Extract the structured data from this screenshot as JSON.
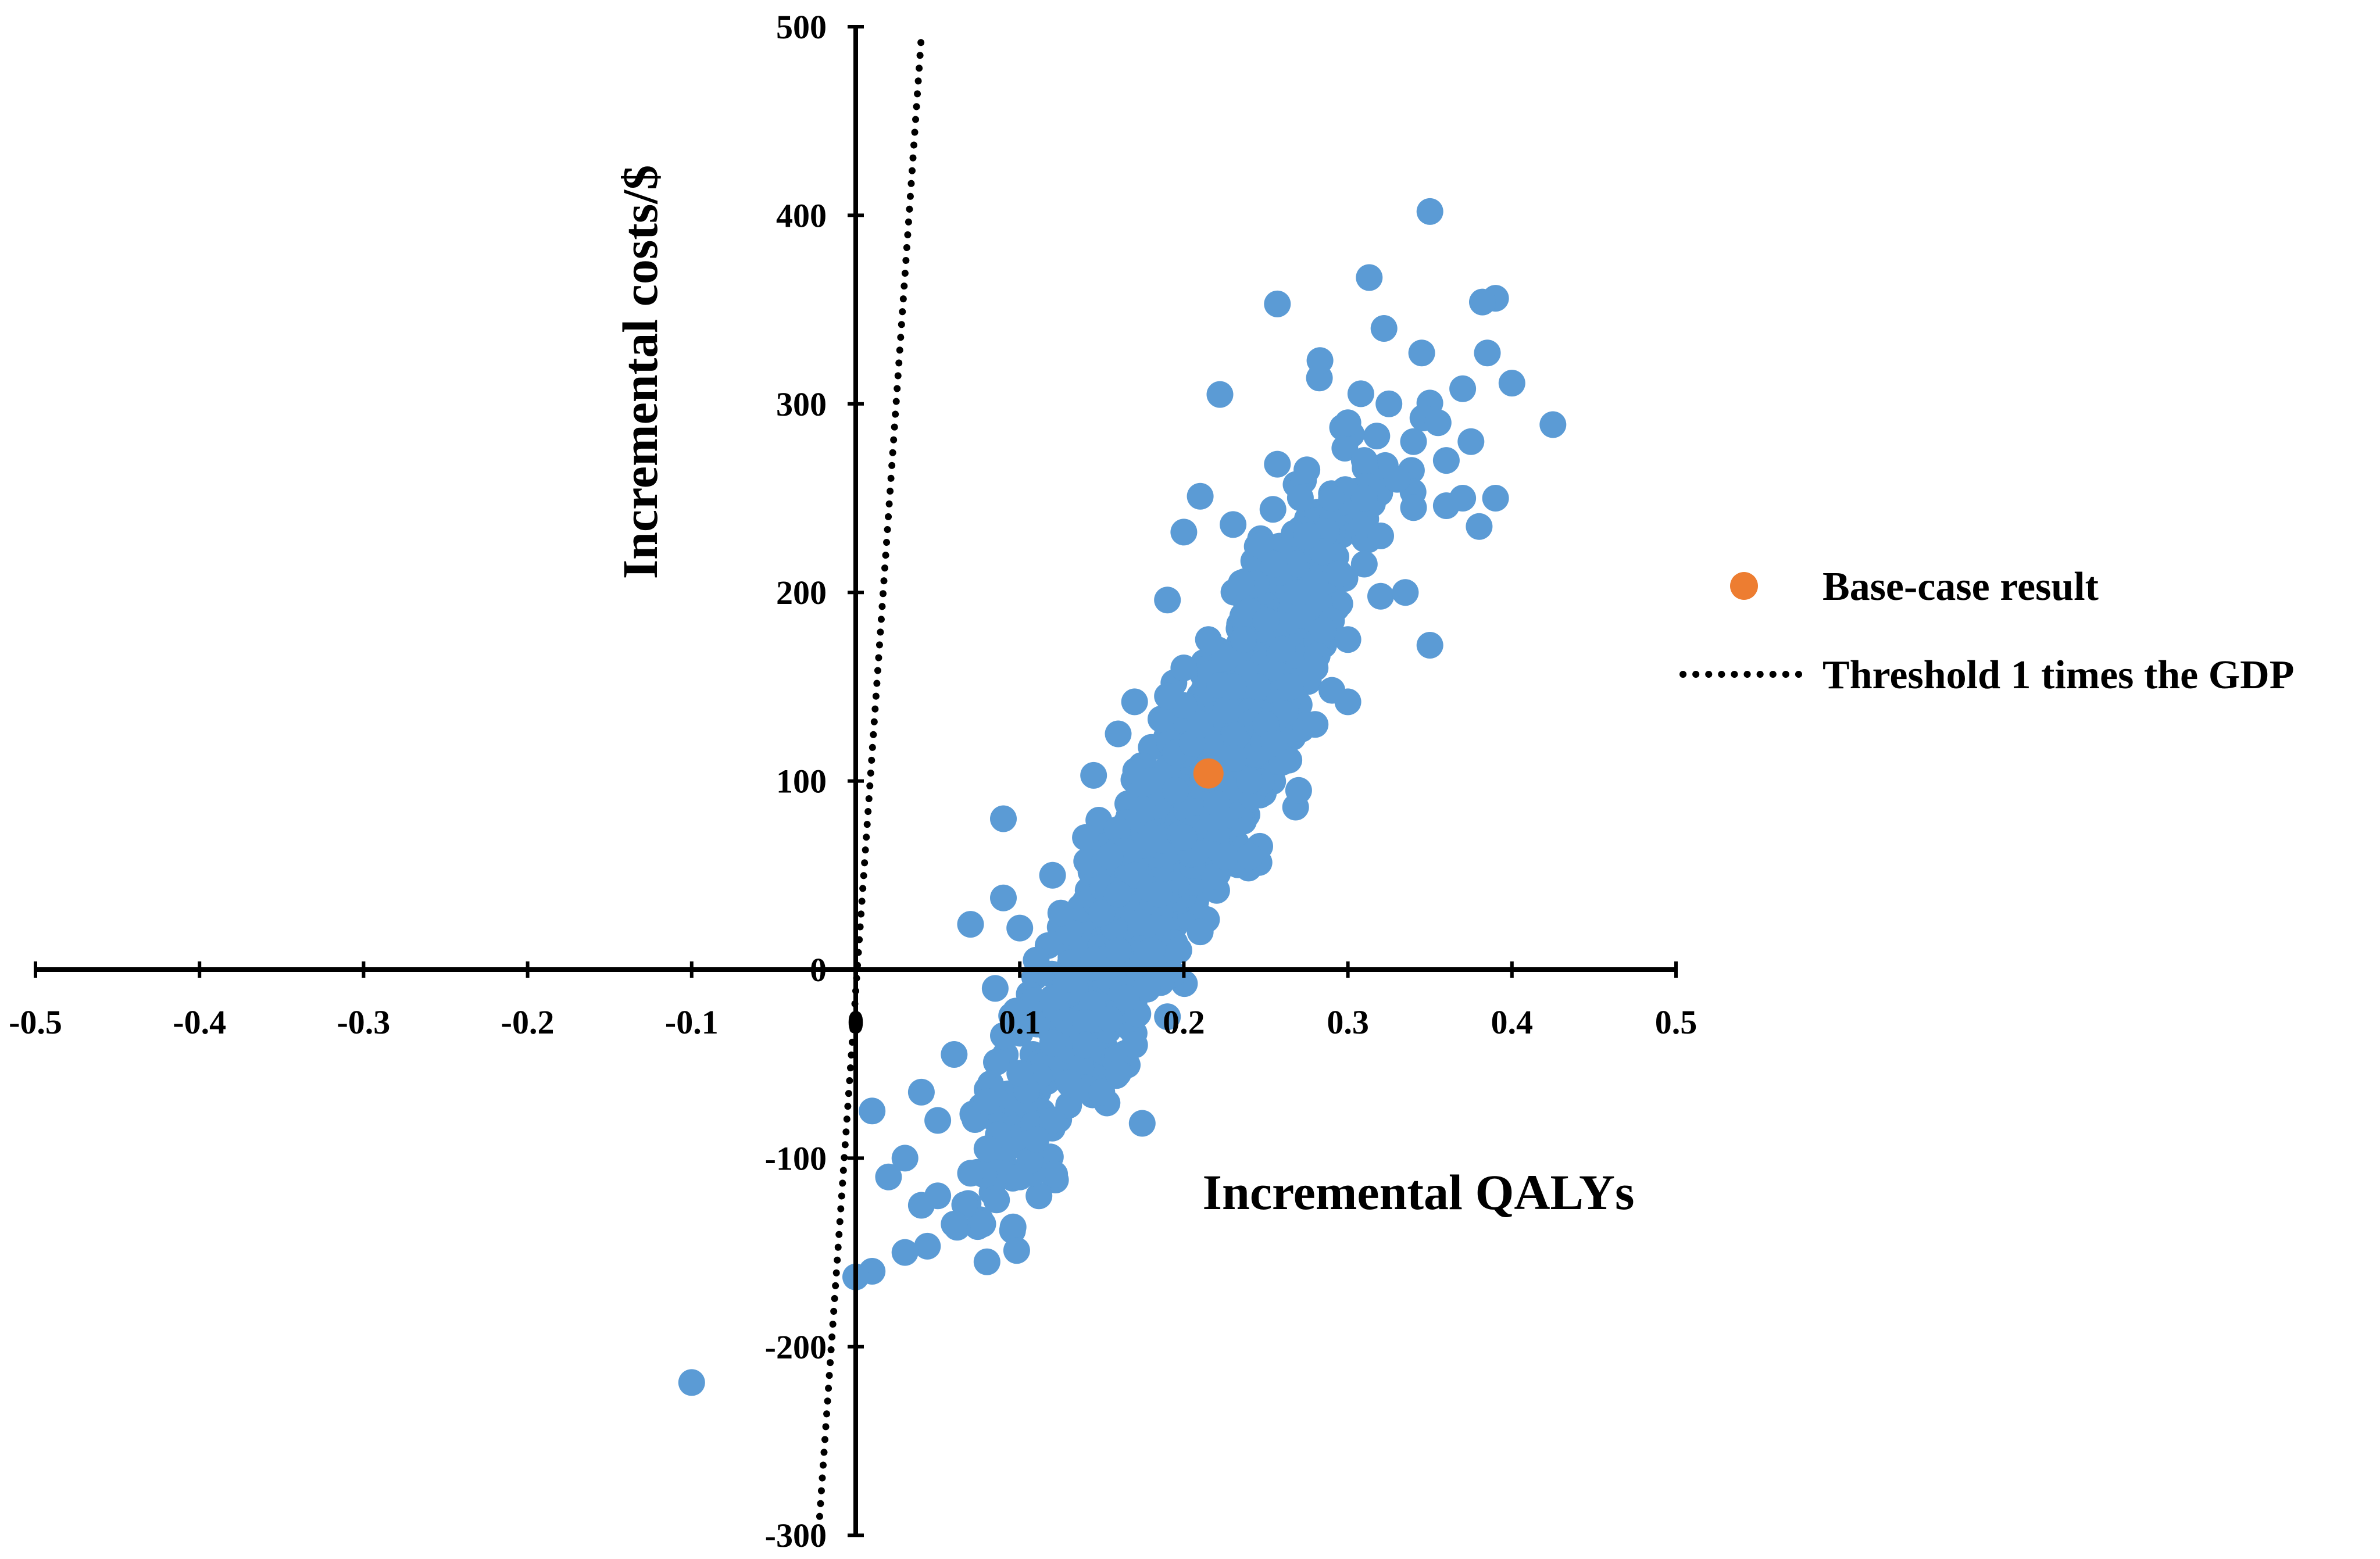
{
  "chart_data": {
    "type": "scatter",
    "title": "",
    "xlabel": "Incremental QALYs",
    "ylabel": "Incremental costs/$",
    "xlim": [
      -0.5,
      0.5
    ],
    "ylim": [
      -300,
      500
    ],
    "x_ticks": [
      -0.5,
      -0.4,
      -0.3,
      -0.2,
      -0.1,
      0,
      0.1,
      0.2,
      0.3,
      0.4,
      0.5
    ],
    "x_tick_labels": [
      "-0.5",
      "-0.4",
      "-0.3",
      "-0.2",
      "-0.1",
      "0",
      "0.1",
      "0.2",
      "0.3",
      "0.4",
      "0.5"
    ],
    "y_ticks": [
      -300,
      -200,
      -100,
      0,
      100,
      200,
      300,
      400,
      500
    ],
    "y_tick_labels": [
      "-300",
      "-200",
      "-100",
      "0",
      "100",
      "200",
      "300",
      "400",
      "500"
    ],
    "grid": false,
    "legend_position": "right",
    "colors": {
      "simulations": "#5B9BD5",
      "base_case": "#ED7D31",
      "threshold": "#000000",
      "axis": "#000000"
    },
    "series": [
      {
        "name": "Base-case result",
        "kind": "point",
        "points": [
          [
            0.215,
            104
          ]
        ]
      },
      {
        "name": "Threshold 1 times the GDP",
        "kind": "dotted-line",
        "points": [
          [
            -0.022,
            -290
          ],
          [
            0.04,
            495
          ]
        ]
      },
      {
        "name": "",
        "kind": "scatter",
        "points": [
          [
            0.35,
            402
          ],
          [
            0.313,
            367
          ],
          [
            0.257,
            353
          ],
          [
            0.39,
            356
          ],
          [
            0.382,
            354
          ],
          [
            0.322,
            340
          ],
          [
            0.385,
            327
          ],
          [
            0.283,
            323
          ],
          [
            0.345,
            327
          ],
          [
            0.4,
            311
          ],
          [
            0.425,
            289
          ],
          [
            0.222,
            305
          ],
          [
            0.37,
            308
          ],
          [
            0.39,
            250
          ],
          [
            0.38,
            235
          ],
          [
            0.34,
            280
          ],
          [
            0.3,
            290
          ],
          [
            0.36,
            270
          ],
          [
            0.33,
            260
          ],
          [
            0.29,
            250
          ],
          [
            0.36,
            246
          ],
          [
            0.257,
            268
          ],
          [
            0.21,
            251
          ],
          [
            0.275,
            265
          ],
          [
            0.23,
            236
          ],
          [
            0.2,
            232
          ],
          [
            0.247,
            225
          ],
          [
            0.35,
            172
          ],
          [
            0.31,
            215
          ],
          [
            0.27,
            200
          ],
          [
            0.24,
            190
          ],
          [
            0.19,
            196
          ],
          [
            0.29,
            185
          ],
          [
            0.32,
            198
          ],
          [
            0.26,
            170
          ],
          [
            0.225,
            165
          ],
          [
            0.2,
            140
          ],
          [
            0.28,
            160
          ],
          [
            0.17,
            142
          ],
          [
            0.195,
            115
          ],
          [
            0.25,
            130
          ],
          [
            0.3,
            142
          ],
          [
            0.23,
            112
          ],
          [
            0.18,
            100
          ],
          [
            0.22,
            88
          ],
          [
            0.27,
            95
          ],
          [
            0.145,
            103
          ],
          [
            0.16,
            125
          ],
          [
            0.09,
            80
          ],
          [
            0.2,
            70
          ],
          [
            0.14,
            70
          ],
          [
            0.12,
            50
          ],
          [
            0.17,
            50
          ],
          [
            0.09,
            38
          ],
          [
            0.1,
            22
          ],
          [
            0.07,
            24
          ],
          [
            0.15,
            30
          ],
          [
            0.13,
            20
          ],
          [
            0.11,
            5
          ],
          [
            0.16,
            10
          ],
          [
            0.085,
            -10
          ],
          [
            0.12,
            -15
          ],
          [
            0.14,
            -28
          ],
          [
            0.09,
            -35
          ],
          [
            0.17,
            -40
          ],
          [
            0.1,
            -55
          ],
          [
            0.13,
            -60
          ],
          [
            0.06,
            -45
          ],
          [
            0.08,
            -70
          ],
          [
            0.04,
            -65
          ],
          [
            0.05,
            -80
          ],
          [
            0.01,
            -75
          ],
          [
            0.03,
            -100
          ],
          [
            0.07,
            -108
          ],
          [
            0.1,
            -110
          ],
          [
            0.08,
            -95
          ],
          [
            0.02,
            -110
          ],
          [
            0.04,
            -125
          ],
          [
            0.06,
            -135
          ],
          [
            0.03,
            -150
          ],
          [
            0.08,
            -155
          ],
          [
            0.01,
            -160
          ],
          [
            0.0,
            -163
          ],
          [
            0.05,
            -120
          ],
          [
            0.12,
            -80
          ],
          [
            0.15,
            -65
          ],
          [
            0.11,
            -90
          ],
          [
            0.19,
            -25
          ],
          [
            0.21,
            20
          ],
          [
            0.24,
            60
          ],
          [
            0.26,
            110
          ],
          [
            0.28,
            130
          ],
          [
            0.3,
            175
          ],
          [
            0.32,
            230
          ],
          [
            0.34,
            245
          ],
          [
            0.37,
            250
          ],
          [
            0.18,
            70
          ],
          [
            0.16,
            40
          ],
          [
            0.13,
            -5
          ],
          [
            0.145,
            5
          ],
          [
            0.155,
            60
          ],
          [
            0.175,
            85
          ],
          [
            0.19,
            145
          ],
          [
            0.215,
            175
          ],
          [
            0.235,
            205
          ],
          [
            0.255,
            215
          ],
          [
            0.265,
            150
          ],
          [
            0.285,
            180
          ],
          [
            0.31,
            270
          ],
          [
            0.325,
            300
          ],
          [
            0.355,
            290
          ],
          [
            0.375,
            280
          ],
          [
            0.245,
            150
          ],
          [
            0.205,
            120
          ],
          [
            0.185,
            40
          ],
          [
            0.165,
            -15
          ],
          [
            0.14,
            -40
          ],
          [
            0.125,
            30
          ],
          [
            0.195,
            95
          ],
          [
            0.225,
            60
          ],
          [
            0.255,
            120
          ],
          [
            0.275,
            230
          ],
          [
            0.295,
            210
          ],
          [
            0.335,
            200
          ],
          [
            0.23,
            150
          ],
          [
            0.25,
            185
          ],
          [
            0.28,
            205
          ],
          [
            0.24,
            100
          ],
          [
            0.21,
            130
          ],
          [
            0.18,
            10
          ],
          [
            0.16,
            -55
          ],
          [
            0.2,
            160
          ],
          [
            0.31,
            250
          ]
        ]
      }
    ],
    "cloud_generator": {
      "count": 1300,
      "slope_cost_per_qaly": 1500,
      "center": [
        0.2,
        80
      ],
      "note": ""
    }
  },
  "legend": {
    "items": [
      {
        "label": "Base-case result",
        "color": "#ED7D31",
        "marker": "circle"
      },
      {
        "label": "Threshold 1 times the GDP",
        "color": "#000000",
        "marker": "dotted-line"
      }
    ]
  }
}
